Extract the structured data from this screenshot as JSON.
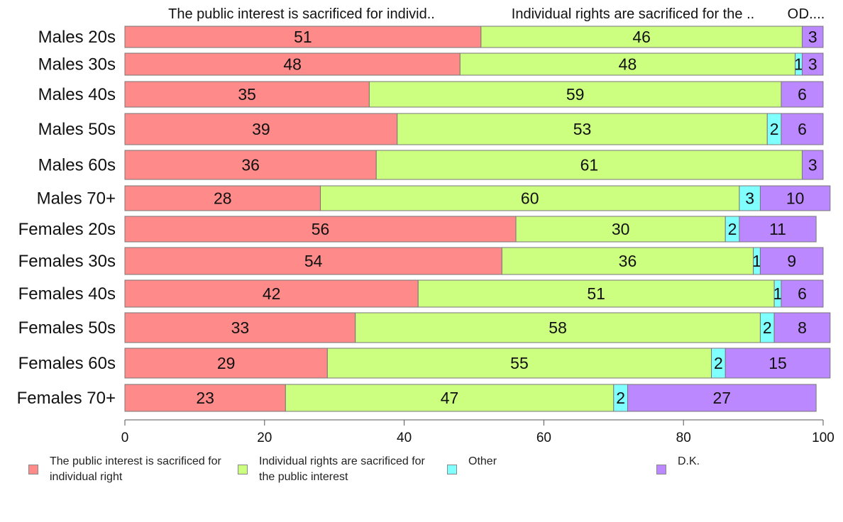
{
  "chart_data": {
    "type": "bar",
    "orientation": "horizontal",
    "stacked": true,
    "title": "",
    "xlabel": "",
    "ylabel": "",
    "xlim": [
      0,
      100
    ],
    "x_ticks": [
      "0",
      "20",
      "40",
      "60",
      "80",
      "100"
    ],
    "header_labels": [
      "The public interest is sacrificed for individ..",
      "Individual rights are sacrificed for the ..",
      "O..",
      "D...."
    ],
    "categories": [
      "Males 20s",
      "Males 30s",
      "Males 40s",
      "Males 50s",
      "Males 60s",
      "Males 70+",
      "Females 20s",
      "Females 30s",
      "Females 40s",
      "Females 50s",
      "Females 60s",
      "Females 70+"
    ],
    "series": [
      {
        "name": "The public interest is sacrificed for individual right",
        "color": "#ff8a8a",
        "values": [
          51,
          48,
          35,
          39,
          36,
          28,
          56,
          54,
          42,
          33,
          29,
          23
        ]
      },
      {
        "name": "Individual rights are sacrificed for the public interest",
        "color": "#ccff80",
        "values": [
          46,
          48,
          59,
          53,
          61,
          60,
          30,
          36,
          51,
          58,
          55,
          47
        ]
      },
      {
        "name": "Other",
        "color": "#80ffff",
        "values": [
          0,
          1,
          0,
          2,
          0,
          3,
          2,
          1,
          1,
          2,
          2,
          2
        ]
      },
      {
        "name": "D.K.",
        "color": "#bb88ff",
        "values": [
          3,
          3,
          6,
          6,
          3,
          10,
          11,
          9,
          6,
          8,
          15,
          27
        ]
      }
    ],
    "legend": {
      "placement": "bottom",
      "items": [
        {
          "label": "The public interest is sacrificed for individual right",
          "color": "#ff8a8a"
        },
        {
          "label": "Individual rights are sacrificed for the public interest",
          "color": "#ccff80"
        },
        {
          "label": "Other",
          "color": "#80ffff"
        },
        {
          "label": "D.K.",
          "color": "#bb88ff"
        }
      ]
    }
  }
}
